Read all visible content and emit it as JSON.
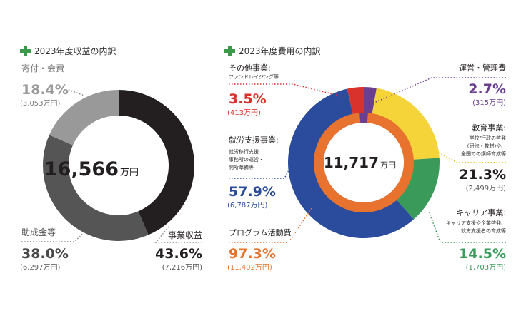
{
  "chart_data": [
    {
      "type": "pie",
      "title": "2023年度収益の内訳",
      "total": {
        "value": "16,566",
        "unit": "万円"
      },
      "slices": [
        {
          "name": "事業収益",
          "percent": 43.6,
          "percent_label": "43.6%",
          "amount": "(7,216万円)",
          "color": "#231f20",
          "label_color": "#231f20"
        },
        {
          "name": "助成金等",
          "percent": 38.0,
          "percent_label": "38.0%",
          "amount": "(6,297万円)",
          "color": "#555555",
          "label_color": "#4a4a4a"
        },
        {
          "name": "寄付・会費",
          "percent": 18.4,
          "percent_label": "18.4%",
          "amount": "(3,053万円)",
          "color": "#999999",
          "label_color": "#9a9a9a"
        }
      ]
    },
    {
      "type": "pie",
      "title": "2023年度費用の内訳",
      "total": {
        "value": "11,717",
        "unit": "万円"
      },
      "outer_slices": [
        {
          "name": "運営・管理費",
          "percent": 2.7,
          "percent_label": "2.7%",
          "amount": "(315万円)",
          "color": "#6b3f8f",
          "label_color": "#6b3f8f",
          "desc": []
        },
        {
          "name": "教育事業:",
          "percent": 21.3,
          "percent_label": "21.3%",
          "amount": "(2,499万円)",
          "color": "#f5d43a",
          "label_color": "#231f20",
          "desc": [
            "学校/行政の啓発",
            "(研修・教材)や、",
            "全国での講師育成等"
          ]
        },
        {
          "name": "キャリア事業:",
          "percent": 14.5,
          "percent_label": "14.5%",
          "amount": "(1,703万円)",
          "color": "#3a9a5a",
          "label_color": "#3a9a5a",
          "desc": [
            "キャリア支援や企業啓発、",
            "就労支援者の育成等"
          ]
        },
        {
          "name": "就労支援事業:",
          "percent": 57.9,
          "percent_label": "57.9%",
          "amount": "(6,787万円)",
          "color": "#2b4c9c",
          "label_color": "#2b4c9c",
          "desc": [
            "就労移行支援",
            "事務所の運営・",
            "開所準備等"
          ]
        },
        {
          "name": "その他事業:",
          "percent": 3.5,
          "percent_label": "3.5%",
          "amount": "(413万円)",
          "color": "#d9312b",
          "label_color": "#d9312b",
          "desc": [
            "ファンドレイジング等"
          ]
        }
      ],
      "inner_slices": [
        {
          "name": "プログラム活動費",
          "percent": 97.3,
          "percent_label": "97.3%",
          "amount": "(11,402万円)",
          "color": "#e8732f",
          "label_color": "#e8732f"
        },
        {
          "name": "",
          "percent": 2.7,
          "color": "#6b3f8f"
        }
      ]
    }
  ],
  "colors": {
    "dotted_leader": "#8a8a8a",
    "title_icon": "#3a9a4a",
    "amount_text": "#555555"
  },
  "icons": [
    "green-cross-icon"
  ]
}
